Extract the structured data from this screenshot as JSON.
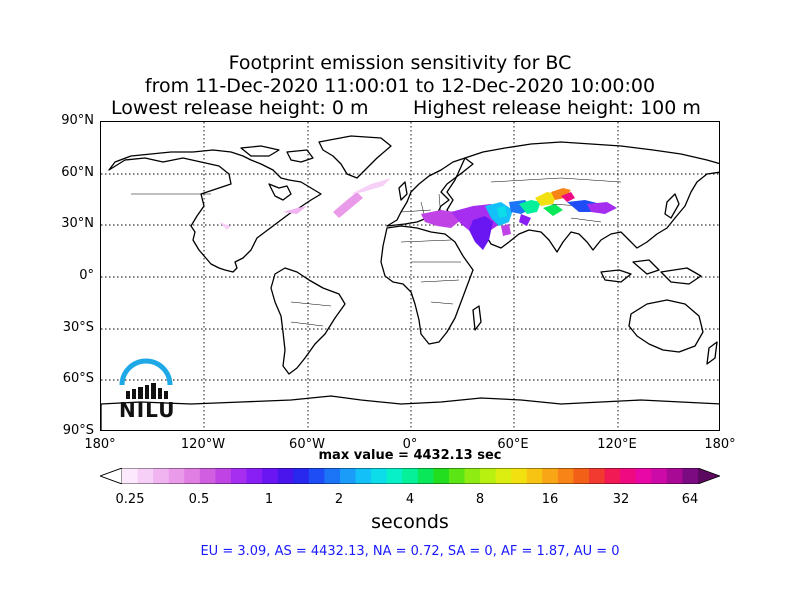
{
  "title": {
    "line1": "Footprint emission sensitivity for BC",
    "line2": "from 11-Dec-2020 11:00:01 to 12-Dec-2020 10:00:00",
    "line3a": "Lowest release height: 0 m",
    "line3b": "Highest release height: 100 m"
  },
  "map": {
    "lat_labels": [
      "90°N",
      "60°N",
      "30°N",
      "0°",
      "30°S",
      "60°S",
      "90°S"
    ],
    "lon_labels": [
      "180°",
      "120°W",
      "60°W",
      "0°",
      "60°E",
      "120°E",
      "180°"
    ],
    "grid": "dotted",
    "projection": "equirectangular",
    "lon_range": [
      -180,
      180
    ],
    "lat_range": [
      -90,
      90
    ]
  },
  "max_value_text": "max value = 4432.13 sec",
  "colorbar": {
    "tick_labels": [
      "0.25",
      "0.5",
      "1",
      "2",
      "4",
      "8",
      "16",
      "32",
      "64"
    ],
    "unit_label": "seconds",
    "colors": [
      "#fde9fd",
      "#f7d0f7",
      "#f0b5f0",
      "#e99ae9",
      "#e07ee3",
      "#d15ee0",
      "#c043e6",
      "#a52ef0",
      "#8a1ff5",
      "#6a16f2",
      "#4a14ec",
      "#2828ee",
      "#1e4df5",
      "#1c74f7",
      "#1a9cf8",
      "#14c0f8",
      "#0ddde9",
      "#08f0c8",
      "#06f09a",
      "#0ae85a",
      "#22de1e",
      "#5ce514",
      "#8eec12",
      "#b8f010",
      "#dcee10",
      "#f2e011",
      "#f8c414",
      "#f8a516",
      "#f88417",
      "#f26018",
      "#f23a30",
      "#f21a55",
      "#f00a82",
      "#e808a8",
      "#cc0aa8",
      "#a80a96",
      "#7c0a80"
    ],
    "under_color": "#ffffff",
    "over_color": "#5c0a60"
  },
  "footer": "EU = 3.09,  AS = 4432.13,  NA = 0.72,  SA = 0,  AF = 1.87,  AU = 0",
  "logo": {
    "text": "NILU",
    "color": "#1ea8e6"
  }
}
